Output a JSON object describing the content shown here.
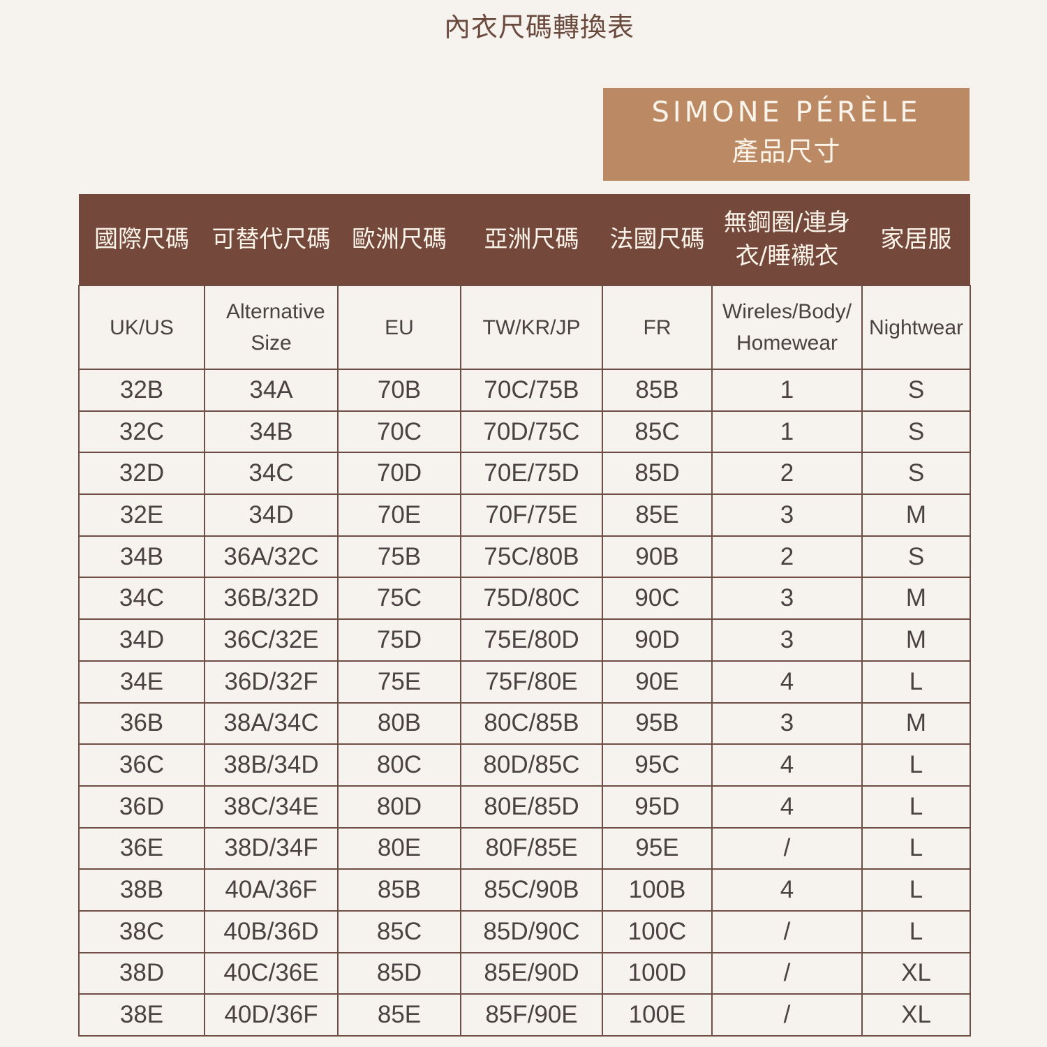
{
  "title": "內衣尺碼轉換表",
  "brand": {
    "name": "SIMONE PÉRÈLE",
    "subtitle": "產品尺寸"
  },
  "colors": {
    "background": "#f6f2ee",
    "brand_box": "#bb8a64",
    "header": "#74483a",
    "text": "#4a4242"
  },
  "table": {
    "headers_zh": [
      "國際尺碼",
      "可替代尺碼",
      "歐洲尺碼",
      "亞洲尺碼",
      "法國尺碼",
      "無鋼圈/連身衣/睡襯衣",
      "家居服"
    ],
    "headers_en": [
      "UK/US",
      "Alternative Size",
      "EU",
      "TW/KR/JP",
      "FR",
      "Wireles/Body/ Homewear",
      "Nightwear"
    ],
    "rows": [
      [
        "32B",
        "34A",
        "70B",
        "70C/75B",
        "85B",
        "1",
        "S"
      ],
      [
        "32C",
        "34B",
        "70C",
        "70D/75C",
        "85C",
        "1",
        "S"
      ],
      [
        "32D",
        "34C",
        "70D",
        "70E/75D",
        "85D",
        "2",
        "S"
      ],
      [
        "32E",
        "34D",
        "70E",
        "70F/75E",
        "85E",
        "3",
        "M"
      ],
      [
        "34B",
        "36A/32C",
        "75B",
        "75C/80B",
        "90B",
        "2",
        "S"
      ],
      [
        "34C",
        "36B/32D",
        "75C",
        "75D/80C",
        "90C",
        "3",
        "M"
      ],
      [
        "34D",
        "36C/32E",
        "75D",
        "75E/80D",
        "90D",
        "3",
        "M"
      ],
      [
        "34E",
        "36D/32F",
        "75E",
        "75F/80E",
        "90E",
        "4",
        "L"
      ],
      [
        "36B",
        "38A/34C",
        "80B",
        "80C/85B",
        "95B",
        "3",
        "M"
      ],
      [
        "36C",
        "38B/34D",
        "80C",
        "80D/85C",
        "95C",
        "4",
        "L"
      ],
      [
        "36D",
        "38C/34E",
        "80D",
        "80E/85D",
        "95D",
        "4",
        "L"
      ],
      [
        "36E",
        "38D/34F",
        "80E",
        "80F/85E",
        "95E",
        "/",
        "L"
      ],
      [
        "38B",
        "40A/36F",
        "85B",
        "85C/90B",
        "100B",
        "4",
        "L"
      ],
      [
        "38C",
        "40B/36D",
        "85C",
        "85D/90C",
        "100C",
        "/",
        "L"
      ],
      [
        "38D",
        "40C/36E",
        "85D",
        "85E/90D",
        "100D",
        "/",
        "XL"
      ],
      [
        "38E",
        "40D/36F",
        "85E",
        "85F/90E",
        "100E",
        "/",
        "XL"
      ]
    ]
  }
}
